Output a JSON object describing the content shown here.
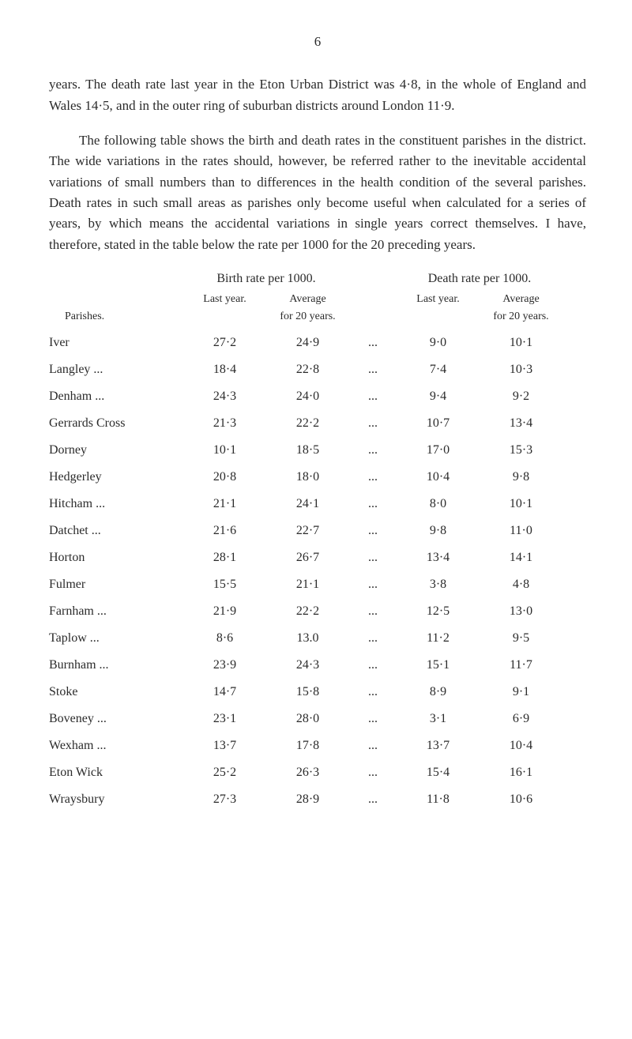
{
  "page_number": "6",
  "paragraphs": [
    "years. The death rate last year in the Eton Urban District was 4·8, in the whole of England and Wales 14·5, and in the outer ring of suburban districts around London 11·9.",
    "The following table shows the birth and death rates in the constituent parishes in the district. The wide variations in the rates should, however, be referred rather to the inevitable accidental variations of small numbers than to differences in the health condition of the several parishes. Death rates in such small areas as parishes only become useful when calculated for a series of years, by which means the accidental variations in single years correct themselves. I have, therefore, stated in the table below the rate per 1000 for the 20 preceding years."
  ],
  "table": {
    "super_headers": {
      "left": "Birth rate per 1000.",
      "right": "Death rate per 1000."
    },
    "sub_headers": {
      "parishes": "Parishes.",
      "last_year": "Last year.",
      "avg_20": "Average\nfor 20 years.",
      "last_year_d": "Last year.",
      "avg_20_d": "Average\nfor 20 years."
    },
    "rows": [
      {
        "parish": "Iver",
        "b_last": "27·2",
        "b_avg": "24·9",
        "d_last": "9·0",
        "d_avg": "10·1"
      },
      {
        "parish": "Langley ...",
        "b_last": "18·4",
        "b_avg": "22·8",
        "d_last": "7·4",
        "d_avg": "10·3"
      },
      {
        "parish": "Denham ...",
        "b_last": "24·3",
        "b_avg": "24·0",
        "d_last": "9·4",
        "d_avg": "9·2"
      },
      {
        "parish": "Gerrards Cross",
        "b_last": "21·3",
        "b_avg": "22·2",
        "d_last": "10·7",
        "d_avg": "13·4"
      },
      {
        "parish": "Dorney",
        "b_last": "10·1",
        "b_avg": "18·5",
        "d_last": "17·0",
        "d_avg": "15·3"
      },
      {
        "parish": "Hedgerley",
        "b_last": "20·8",
        "b_avg": "18·0",
        "d_last": "10·4",
        "d_avg": "9·8"
      },
      {
        "parish": "Hitcham ...",
        "b_last": "21·1",
        "b_avg": "24·1",
        "d_last": "8·0",
        "d_avg": "10·1"
      },
      {
        "parish": "Datchet ...",
        "b_last": "21·6",
        "b_avg": "22·7",
        "d_last": "9·8",
        "d_avg": "11·0"
      },
      {
        "parish": "Horton",
        "b_last": "28·1",
        "b_avg": "26·7",
        "d_last": "13·4",
        "d_avg": "14·1"
      },
      {
        "parish": "Fulmer",
        "b_last": "15·5",
        "b_avg": "21·1",
        "d_last": "3·8",
        "d_avg": "4·8"
      },
      {
        "parish": "Farnham ...",
        "b_last": "21·9",
        "b_avg": "22·2",
        "d_last": "12·5",
        "d_avg": "13·0"
      },
      {
        "parish": "Taplow ...",
        "b_last": "8·6",
        "b_avg": "13.0",
        "d_last": "11·2",
        "d_avg": "9·5"
      },
      {
        "parish": "Burnham ...",
        "b_last": "23·9",
        "b_avg": "24·3",
        "d_last": "15·1",
        "d_avg": "11·7"
      },
      {
        "parish": "Stoke",
        "b_last": "14·7",
        "b_avg": "15·8",
        "d_last": "8·9",
        "d_avg": "9·1"
      },
      {
        "parish": "Boveney ...",
        "b_last": "23·1",
        "b_avg": "28·0",
        "d_last": "3·1",
        "d_avg": "6·9"
      },
      {
        "parish": "Wexham ...",
        "b_last": "13·7",
        "b_avg": "17·8",
        "d_last": "13·7",
        "d_avg": "10·4"
      },
      {
        "parish": "Eton Wick",
        "b_last": "25·2",
        "b_avg": "26·3",
        "d_last": "15·4",
        "d_avg": "16·1"
      },
      {
        "parish": "Wraysbury",
        "b_last": "27·3",
        "b_avg": "28·9",
        "d_last": "11·8",
        "d_avg": "10·6"
      }
    ],
    "lead_dots": "...",
    "mid_dots": "..."
  },
  "style": {
    "background_color": "#ffffff",
    "text_color": "#2b2b2b",
    "body_fontsize": 17,
    "table_fontsize": 16,
    "subheader_fontsize": 14
  }
}
